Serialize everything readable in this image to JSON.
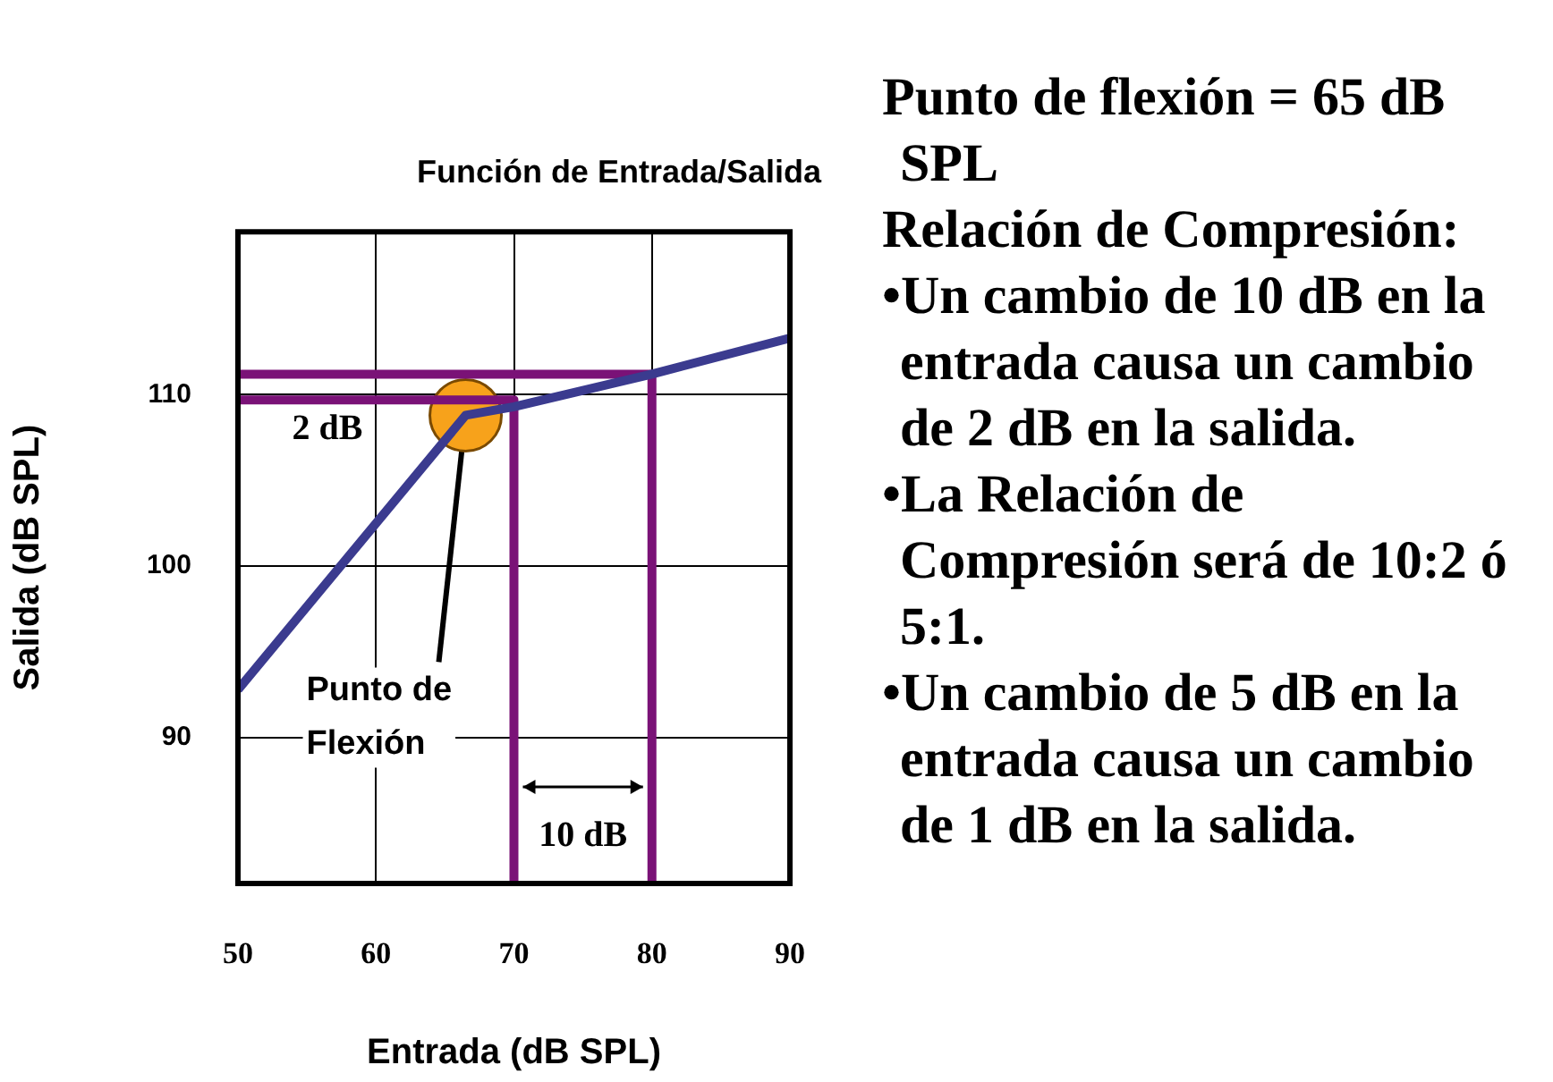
{
  "chart_data": {
    "type": "line",
    "title": "Función de Entrada/Salida",
    "xlabel": "Entrada (dB SPL)",
    "ylabel": "Salida (dB SPL)",
    "xlim": [
      50,
      90
    ],
    "xticks": [
      50,
      60,
      70,
      80,
      90
    ],
    "ylim": [
      81.5,
      119.5
    ],
    "yticks": [
      90,
      100,
      110
    ],
    "grid": true,
    "legend": false,
    "series": [
      {
        "color": "#3b3b8f",
        "x": [
          50,
          66.5,
          70,
          80,
          90
        ],
        "values": [
          92.8,
          108.8,
          109.3,
          111.2,
          113.3
        ],
        "marker": "none",
        "line_style": "solid"
      },
      {
        "color": "#7a1277",
        "x": [
          50,
          70,
          70
        ],
        "values": [
          109.7,
          109.7,
          81.5
        ],
        "marker": "none",
        "line_style": "solid"
      },
      {
        "color": "#7a1277",
        "x": [
          50,
          80,
          80
        ],
        "values": [
          111.2,
          111.2,
          81.5
        ],
        "marker": "none",
        "line_style": "solid"
      },
      {
        "type": "scatter",
        "color": "#f7a21b",
        "x": [
          66.5
        ],
        "values": [
          108.8
        ],
        "marker": "circle"
      }
    ],
    "annotations": [
      "2 dB",
      "10 dB",
      {
        "text": "Punto de Flexión",
        "x": 66.5,
        "y": 108.8
      },
      "Punto de flexión = 65 dB SPL",
      "Relación de Compresión:",
      "•Un cambio de 10 dB en la entrada causa un cambio de 2 dB en la salida.",
      "•La  Relación de Compresión será de 10:2 ó 5:1.",
      "•Un cambio de 5 dB en la entrada causa un cambio de 1 dB en la salida."
    ]
  }
}
